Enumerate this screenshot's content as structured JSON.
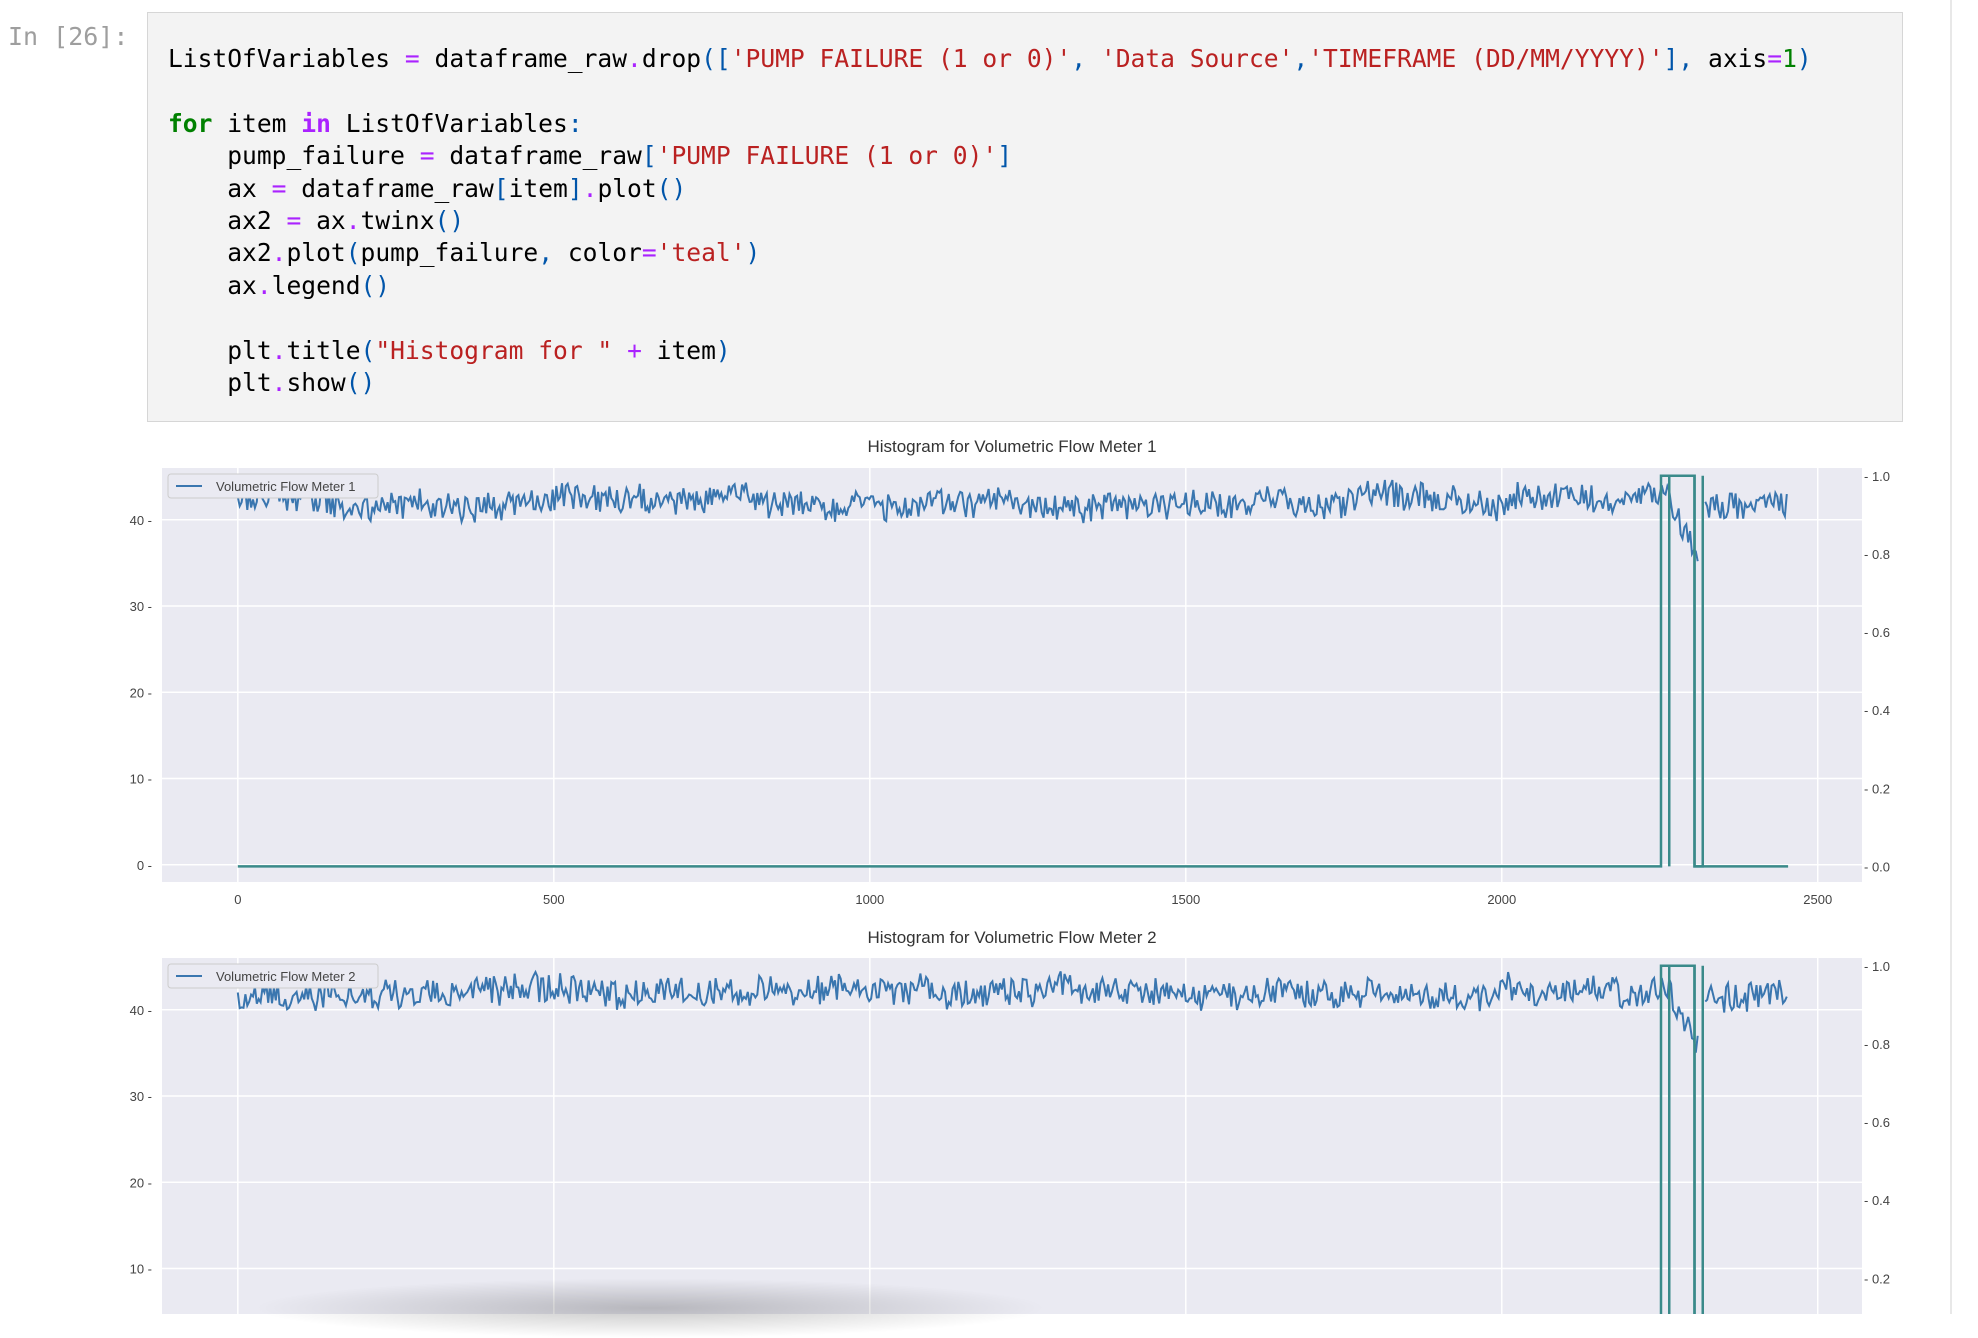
{
  "cell": {
    "prompt": "In [26]:",
    "code": {
      "line1": {
        "a": "ListOfVariables ",
        "eq": "=",
        "b": " dataframe_raw",
        "dot": ".",
        "c": "drop",
        "p1": "([",
        "s1": "'PUMP FAILURE (1 or 0)'",
        "cm1": ", ",
        "s2": "'Data Source'",
        "cm2": ",",
        "s3": "'TIMEFRAME (DD/MM/YYYY)'",
        "p2": "],",
        "d": " axis",
        "eq2": "=",
        "n1": "1",
        "p3": ")"
      },
      "line3": {
        "kw1": "for",
        "a": " item ",
        "kw2": "in",
        "b": " ListOfVariables",
        "colon": ":"
      },
      "line4": {
        "a": "    pump_failure ",
        "eq": "=",
        "b": " dataframe_raw",
        "p1": "[",
        "s": "'PUMP FAILURE (1 or 0)'",
        "p2": "]"
      },
      "line5": {
        "a": "    ax ",
        "eq": "=",
        "b": " dataframe_raw",
        "p1": "[",
        "c": "item",
        "p2": "]",
        "dot": ".",
        "d": "plot",
        "p3": "()"
      },
      "line6": {
        "a": "    ax2 ",
        "eq": "=",
        "b": " ax",
        "dot": ".",
        "c": "twinx",
        "p": "()"
      },
      "line7": {
        "a": "    ax2",
        "dot": ".",
        "b": "plot",
        "p1": "(",
        "c": "pump_failure",
        "cm": ",",
        "d": " color",
        "eq": "=",
        "s": "'teal'",
        "p2": ")"
      },
      "line8": {
        "a": "    ax",
        "dot": ".",
        "b": "legend",
        "p": "()"
      },
      "line10": {
        "a": "    plt",
        "dot": ".",
        "b": "title",
        "p1": "(",
        "s": "\"Histogram for \"",
        "sp": " ",
        "plus": "+",
        "c": " item",
        "p2": ")"
      },
      "line11": {
        "a": "    plt",
        "dot": ".",
        "b": "show",
        "p": "()"
      }
    }
  },
  "colors": {
    "flow_series": "#3a76af",
    "pump_failure_series": "#3a8a8a",
    "plot_background": "#eaeaf2",
    "grid": "#ffffff"
  },
  "chart_data": [
    {
      "type": "line",
      "title": "Histogram for Volumetric Flow Meter 1",
      "legend": [
        "Volumetric Flow Meter 1"
      ],
      "legend_position": "top-left",
      "grid": true,
      "xlim": [
        -120,
        2570
      ],
      "ylim": [
        -2,
        46
      ],
      "y2lim": [
        -0.04,
        1.02
      ],
      "xticks": [
        "0",
        "500",
        "1000",
        "1500",
        "2000",
        "2500"
      ],
      "yticks": [
        "0",
        "10",
        "20",
        "30",
        "40"
      ],
      "y2ticks": [
        "0.0",
        "0.2",
        "0.4",
        "0.6",
        "0.8",
        "1.0"
      ],
      "series": [
        {
          "name": "Volumetric Flow Meter 1",
          "axis": "left",
          "baseline": 42,
          "noise": 1.6,
          "x_range": [
            0,
            2453
          ],
          "failure_x": [
            2252,
            2310
          ],
          "failure_dip_to": 36,
          "gap_x": [
            2310,
            2320
          ]
        },
        {
          "axis": "right",
          "x": [
            0,
            2252,
            2252,
            2305,
            2305,
            2318,
            2318,
            2453
          ],
          "y": [
            0,
            0,
            1,
            1,
            0,
            0,
            0,
            0
          ],
          "outline_x": [
            2252,
            2252,
            2305,
            2305,
            2318,
            2318
          ],
          "outline_y": [
            0,
            1,
            1,
            0,
            0,
            0
          ]
        }
      ]
    },
    {
      "type": "line",
      "title": "Histogram for Volumetric Flow Meter 2",
      "legend": [
        "Volumetric Flow Meter 2"
      ],
      "legend_position": "top-left",
      "grid": true,
      "xlim": [
        -120,
        2570
      ],
      "ylim": [
        -2,
        46
      ],
      "y2lim": [
        -0.04,
        1.02
      ],
      "yticks": [
        "10",
        "20",
        "30",
        "40"
      ],
      "y2ticks": [
        "0.2",
        "0.4",
        "0.6",
        "0.8",
        "1.0"
      ],
      "series": [
        {
          "name": "Volumetric Flow Meter 2",
          "axis": "left",
          "baseline": 42,
          "noise": 1.6,
          "x_range": [
            0,
            2453
          ],
          "failure_x": [
            2252,
            2310
          ],
          "failure_dip_to": 35.5,
          "gap_x": [
            2310,
            2320
          ]
        },
        {
          "axis": "right",
          "x": [
            0,
            2252,
            2252,
            2305,
            2305,
            2318,
            2318,
            2453
          ],
          "y": [
            0,
            0,
            1,
            1,
            0,
            0,
            0,
            0
          ]
        }
      ]
    }
  ]
}
